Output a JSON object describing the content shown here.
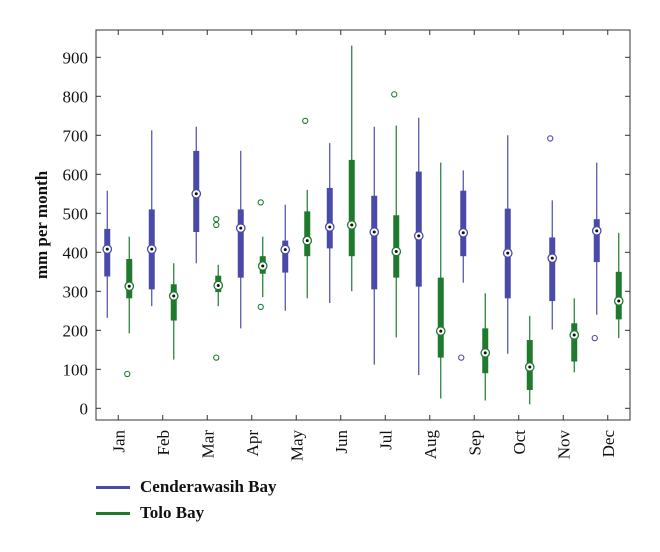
{
  "chart_data": {
    "type": "boxplot",
    "ylabel": "mm per month",
    "xlabel": "",
    "ylim": [
      -30,
      970
    ],
    "yticks": [
      0,
      100,
      200,
      300,
      400,
      500,
      600,
      700,
      800,
      900
    ],
    "categories": [
      "Jan",
      "Feb",
      "Mar",
      "Apr",
      "May",
      "Jun",
      "Jul",
      "Aug",
      "Sep",
      "Oct",
      "Nov",
      "Dec"
    ],
    "legend_position": "bottom-left",
    "series": [
      {
        "name": "Cenderawasih Bay",
        "color": "#4a4aa8",
        "boxes": [
          {
            "min": 232,
            "q1": 338,
            "median": 408,
            "q3": 460,
            "max": 558,
            "outliers": []
          },
          {
            "min": 262,
            "q1": 305,
            "median": 408,
            "q3": 510,
            "max": 713,
            "outliers": []
          },
          {
            "min": 372,
            "q1": 452,
            "median": 550,
            "q3": 660,
            "max": 722,
            "outliers": []
          },
          {
            "min": 205,
            "q1": 335,
            "median": 462,
            "q3": 510,
            "max": 660,
            "outliers": []
          },
          {
            "min": 250,
            "q1": 348,
            "median": 407,
            "q3": 430,
            "max": 522,
            "outliers": []
          },
          {
            "min": 270,
            "q1": 410,
            "median": 465,
            "q3": 565,
            "max": 680,
            "outliers": []
          },
          {
            "min": 112,
            "q1": 305,
            "median": 452,
            "q3": 545,
            "max": 722,
            "outliers": []
          },
          {
            "min": 85,
            "q1": 312,
            "median": 442,
            "q3": 607,
            "max": 745,
            "outliers": []
          },
          {
            "min": 322,
            "q1": 390,
            "median": 450,
            "q3": 558,
            "max": 610,
            "outliers": [
              130
            ]
          },
          {
            "min": 140,
            "q1": 282,
            "median": 398,
            "q3": 512,
            "max": 700,
            "outliers": []
          },
          {
            "min": 202,
            "q1": 275,
            "median": 385,
            "q3": 438,
            "max": 533,
            "outliers": [
              692
            ]
          },
          {
            "min": 240,
            "q1": 375,
            "median": 455,
            "q3": 485,
            "max": 630,
            "outliers": [
              180
            ]
          }
        ]
      },
      {
        "name": "Tolo Bay",
        "color": "#1f7a2e",
        "boxes": [
          {
            "min": 192,
            "q1": 282,
            "median": 313,
            "q3": 383,
            "max": 440,
            "outliers": [
              88
            ]
          },
          {
            "min": 125,
            "q1": 225,
            "median": 288,
            "q3": 318,
            "max": 372,
            "outliers": []
          },
          {
            "min": 262,
            "q1": 298,
            "median": 315,
            "q3": 340,
            "max": 368,
            "outliers": [
              130,
              470,
              485
            ]
          },
          {
            "min": 285,
            "q1": 345,
            "median": 365,
            "q3": 390,
            "max": 440,
            "outliers": [
              260,
              528
            ]
          },
          {
            "min": 282,
            "q1": 390,
            "median": 430,
            "q3": 505,
            "max": 560,
            "outliers": [
              737
            ]
          },
          {
            "min": 300,
            "q1": 390,
            "median": 470,
            "q3": 637,
            "max": 930,
            "outliers": []
          },
          {
            "min": 182,
            "q1": 335,
            "median": 402,
            "q3": 495,
            "max": 725,
            "outliers": [
              805
            ]
          },
          {
            "min": 25,
            "q1": 130,
            "median": 198,
            "q3": 335,
            "max": 630,
            "outliers": []
          },
          {
            "min": 20,
            "q1": 90,
            "median": 142,
            "q3": 205,
            "max": 295,
            "outliers": []
          },
          {
            "min": 10,
            "q1": 47,
            "median": 106,
            "q3": 175,
            "max": 237,
            "outliers": []
          },
          {
            "min": 92,
            "q1": 120,
            "median": 188,
            "q3": 218,
            "max": 282,
            "outliers": []
          },
          {
            "min": 180,
            "q1": 228,
            "median": 275,
            "q3": 350,
            "max": 450,
            "outliers": []
          }
        ]
      }
    ]
  }
}
